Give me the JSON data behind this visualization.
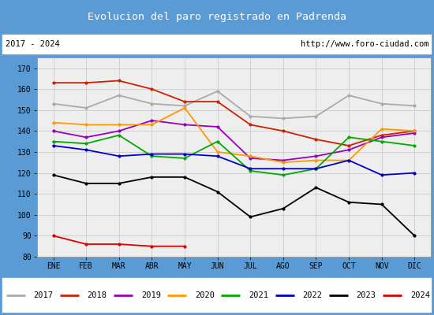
{
  "title": "Evolucion del paro registrado en Padrenda",
  "title_color": "#ffffff",
  "title_bg": "#5b9bd5",
  "subtitle_left": "2017 - 2024",
  "subtitle_right": "http://www.foro-ciudad.com",
  "months": [
    "ENE",
    "FEB",
    "MAR",
    "ABR",
    "MAY",
    "JUN",
    "JUL",
    "AGO",
    "SEP",
    "OCT",
    "NOV",
    "DIC"
  ],
  "ylim": [
    80,
    175
  ],
  "yticks": [
    80,
    90,
    100,
    110,
    120,
    130,
    140,
    150,
    160,
    170
  ],
  "series": {
    "2017": {
      "color": "#aaaaaa",
      "data": [
        153,
        151,
        157,
        153,
        152,
        159,
        147,
        146,
        147,
        157,
        153,
        152
      ]
    },
    "2018": {
      "color": "#cc2200",
      "data": [
        163,
        163,
        164,
        160,
        154,
        154,
        143,
        140,
        136,
        133,
        138,
        140
      ]
    },
    "2019": {
      "color": "#9900bb",
      "data": [
        140,
        137,
        140,
        145,
        143,
        142,
        127,
        126,
        128,
        131,
        137,
        139
      ]
    },
    "2020": {
      "color": "#ff9900",
      "data": [
        144,
        143,
        143,
        143,
        151,
        130,
        128,
        125,
        126,
        126,
        141,
        140
      ]
    },
    "2021": {
      "color": "#00aa00",
      "data": [
        135,
        134,
        138,
        128,
        127,
        135,
        121,
        119,
        122,
        137,
        135,
        133
      ]
    },
    "2022": {
      "color": "#0000cc",
      "data": [
        133,
        131,
        128,
        129,
        129,
        128,
        122,
        122,
        122,
        126,
        119,
        120
      ]
    },
    "2023": {
      "color": "#000000",
      "data": [
        119,
        115,
        115,
        118,
        118,
        111,
        99,
        103,
        113,
        106,
        105,
        90
      ]
    },
    "2024": {
      "color": "#dd0000",
      "data": [
        90,
        86,
        86,
        85,
        85,
        null,
        null,
        null,
        null,
        null,
        null,
        null
      ]
    }
  },
  "legend_order": [
    "2017",
    "2018",
    "2019",
    "2020",
    "2021",
    "2022",
    "2023",
    "2024"
  ],
  "grid_color": "#cccccc",
  "plot_bg": "#eeeeee",
  "border_color": "#5b9bd5",
  "fig_width": 5.5,
  "fig_height": 4.0,
  "dpi": 100
}
